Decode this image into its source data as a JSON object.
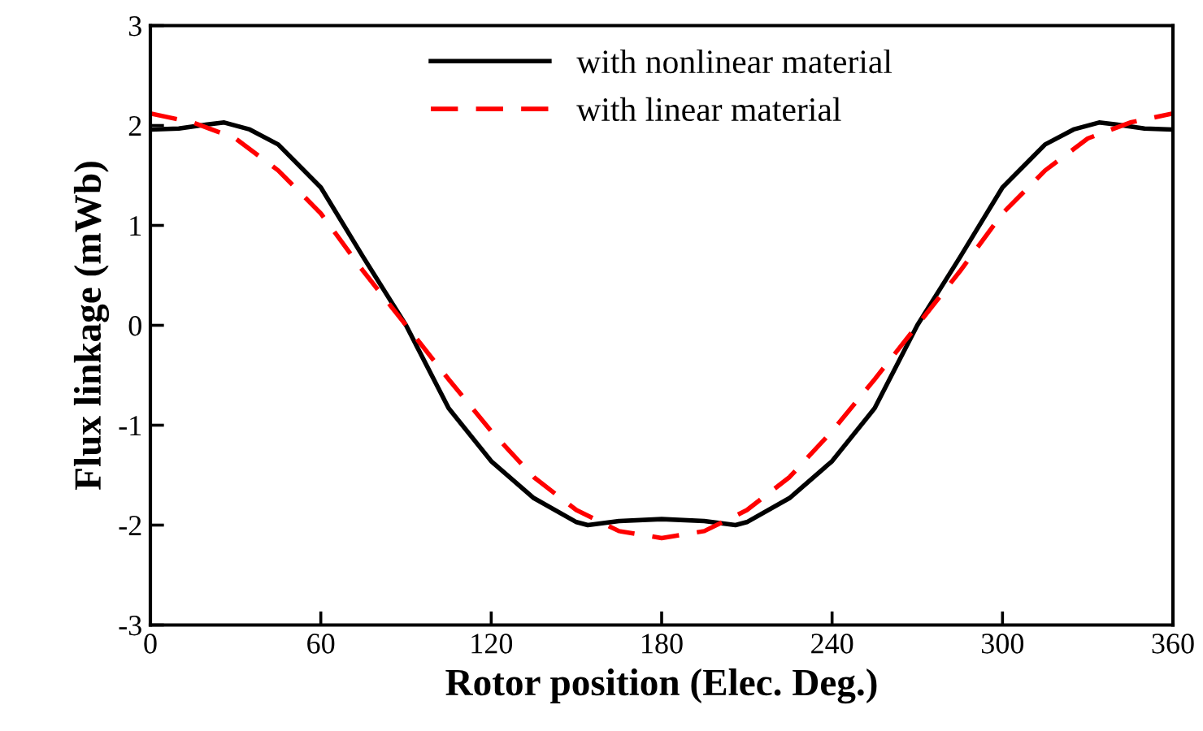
{
  "chart_data": {
    "type": "line",
    "xlabel": "Rotor position (Elec. Deg.)",
    "ylabel": "Flux linkage (mWb)",
    "xlim": [
      0,
      360
    ],
    "xticks": [
      0,
      60,
      120,
      180,
      240,
      300,
      360
    ],
    "ylim": [
      -3,
      3
    ],
    "yticks": [
      -3,
      -2,
      -1,
      0,
      1,
      2,
      3
    ],
    "grid": false,
    "legend": "top",
    "marker": "none",
    "series": [
      {
        "name": "with nonlinear material",
        "color": "#000000",
        "line_style": "solid",
        "x": [
          0,
          10,
          20,
          26,
          35,
          45,
          60,
          75,
          90,
          105,
          120,
          135,
          150,
          154,
          165,
          180,
          195,
          206,
          210,
          225,
          240,
          255,
          270,
          285,
          300,
          315,
          325,
          334,
          340,
          350,
          360
        ],
        "values": [
          1.96,
          1.97,
          2.01,
          2.03,
          1.96,
          1.81,
          1.38,
          0.68,
          0,
          -0.83,
          -1.36,
          -1.73,
          -1.97,
          -2.0,
          -1.96,
          -1.94,
          -1.96,
          -2.0,
          -1.97,
          -1.73,
          -1.36,
          -0.83,
          0,
          0.68,
          1.38,
          1.81,
          1.96,
          2.03,
          2.01,
          1.97,
          1.96
        ]
      },
      {
        "name": "with linear material",
        "color": "#ff0000",
        "line_style": "dashed",
        "x": [
          0,
          15,
          30,
          45,
          60,
          75,
          90,
          105,
          120,
          135,
          150,
          165,
          180,
          195,
          210,
          225,
          240,
          255,
          270,
          285,
          300,
          315,
          330,
          345,
          360
        ],
        "values": [
          2.12,
          2.03,
          1.87,
          1.55,
          1.12,
          0.54,
          0,
          -0.54,
          -1.06,
          -1.52,
          -1.85,
          -2.06,
          -2.13,
          -2.06,
          -1.85,
          -1.52,
          -1.06,
          -0.54,
          0,
          0.54,
          1.12,
          1.55,
          1.87,
          2.03,
          2.12
        ]
      }
    ]
  }
}
